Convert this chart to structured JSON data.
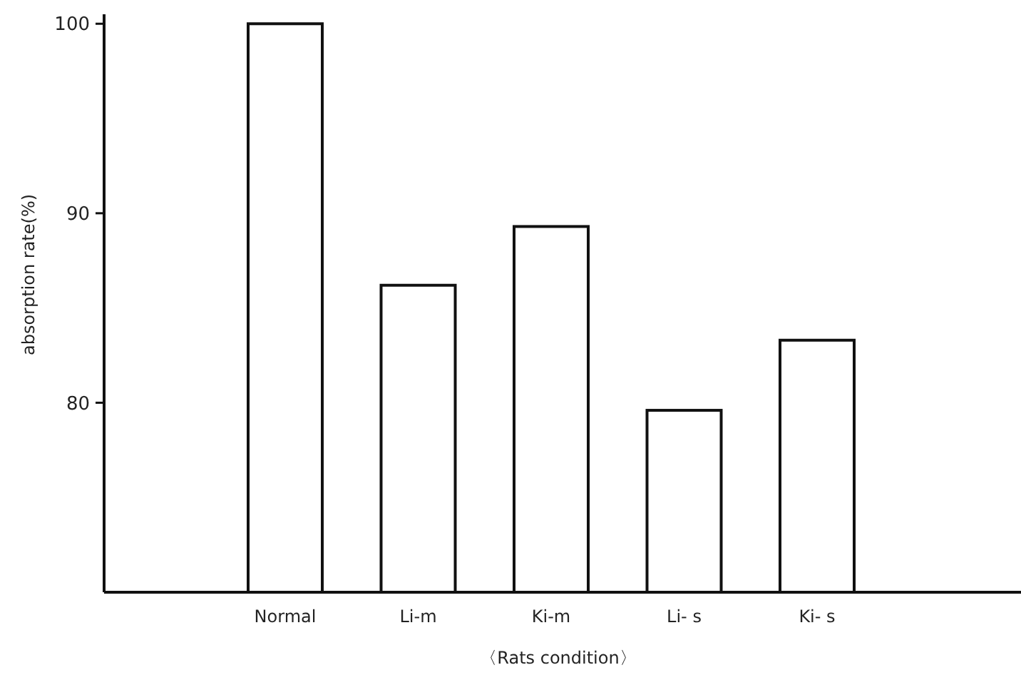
{
  "chart_data": {
    "type": "bar",
    "xlabel": "〈Rats condition〉",
    "ylabel": "absorption rate(%)",
    "categories": [
      "Normal",
      "Li-m",
      "Ki-m",
      "Li- s",
      "Ki- s"
    ],
    "values": [
      100,
      86.2,
      89.3,
      79.6,
      83.3
    ],
    "colors": [
      "#ffffff",
      "#ffffff",
      "#ffffff",
      "#ffffff",
      "#ffffff"
    ],
    "ylim": [
      70,
      100.5
    ],
    "yticks": [
      80,
      90,
      100
    ],
    "grid": false
  }
}
